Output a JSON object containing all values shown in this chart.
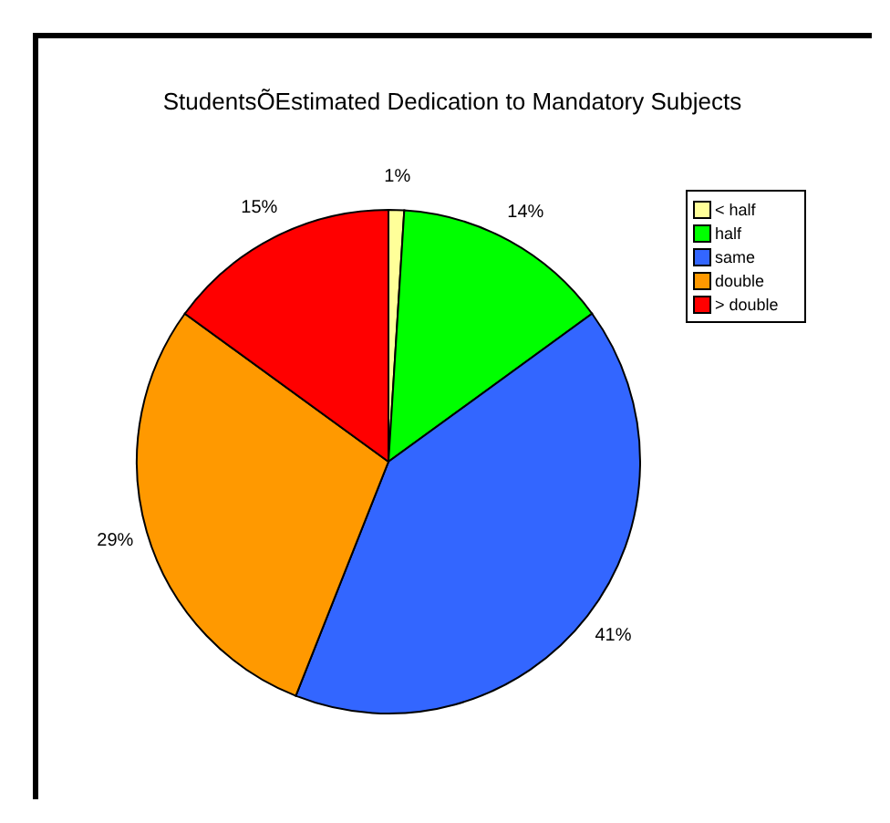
{
  "chart_data": {
    "type": "pie",
    "title": "StudentsÕEstimated Dedication to Mandatory Subjects",
    "categories": [
      "< half",
      "half",
      "same",
      "double",
      "> double"
    ],
    "values": [
      1,
      14,
      41,
      29,
      15
    ],
    "colors": [
      "#ffff99",
      "#00ff00",
      "#3366ff",
      "#ff9900",
      "#ff0000"
    ],
    "value_labels": [
      "1%",
      "14%",
      "41%",
      "29%",
      "15%"
    ],
    "legend": "top right"
  }
}
